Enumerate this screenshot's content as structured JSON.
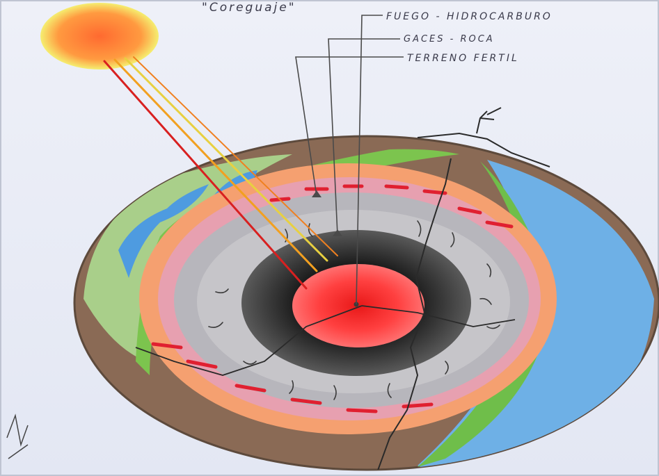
{
  "title": "\"Coreguaje\"",
  "labels": {
    "fire": "FUEGO - HIDROCARBURO",
    "gas": "GACES - ROCA",
    "soil": "TERRENO FERTIL"
  },
  "colors": {
    "paper": "#e9ecf6",
    "sun": "#ff8a3d",
    "core": "#ff3030",
    "dark_mantle": "#2a2a2a",
    "grey_rock": "#a8a8aa",
    "magma": "#e9414e",
    "orange_band": "#f5a070",
    "brown_crust": "#7b5a43",
    "green": "#78b84a",
    "water": "#5aa8e6"
  }
}
